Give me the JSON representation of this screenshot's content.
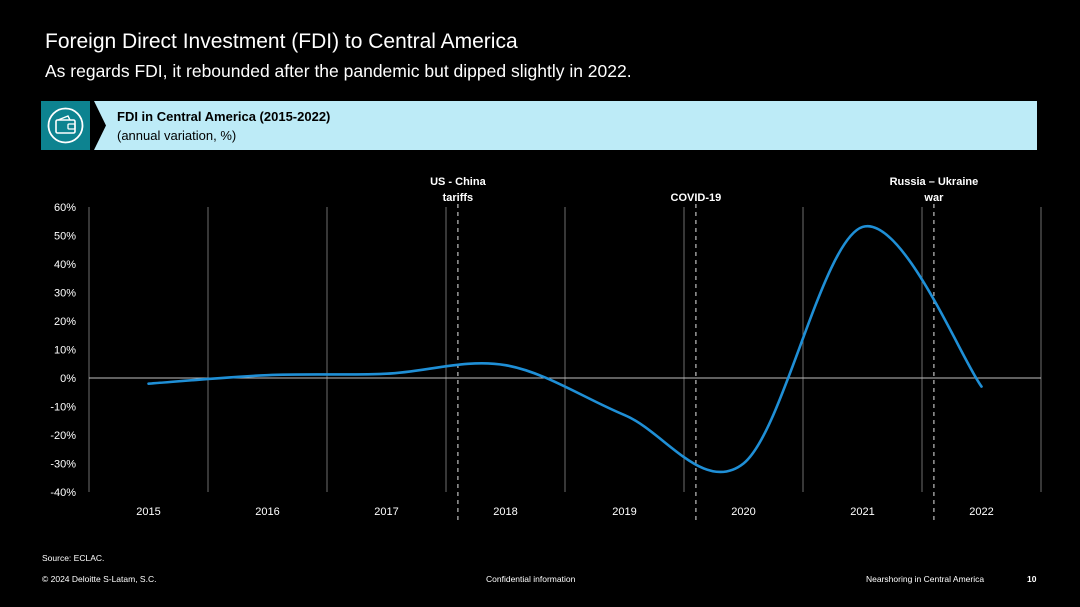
{
  "slide": {
    "title": "Foreign Direct Investment (FDI) to Central America",
    "subtitle": "As regards FDI, it rebounded after the pandemic but dipped slightly in 2022."
  },
  "banner": {
    "icon": "wallet-icon",
    "title": "FDI in Central America (2015-2022)",
    "subtitle": "(annual variation, %)",
    "colors": {
      "icon_bg": "#0d8390",
      "body_bg": "#bdebf7"
    }
  },
  "chart_data": {
    "type": "line",
    "title": "",
    "xlabel": "",
    "ylabel": "",
    "categories": [
      "2015",
      "2016",
      "2017",
      "2018",
      "2019",
      "2020",
      "2021",
      "2022"
    ],
    "ylim": [
      -40,
      60
    ],
    "yticks": [
      "60%",
      "50%",
      "40%",
      "30%",
      "20%",
      "10%",
      "0%",
      "-10%",
      "-20%",
      "-30%",
      "-40%"
    ],
    "grid": "vertical",
    "series": [
      {
        "values": [
          -2,
          1,
          1.5,
          4.5,
          -13,
          -30,
          53,
          -3
        ],
        "color": "#1f8fd6"
      }
    ],
    "events": [
      {
        "label_lines": [
          "US - China",
          "tariffs"
        ],
        "x": 2017.6
      },
      {
        "label_lines": [
          "COVID-19"
        ],
        "x": 2019.6
      },
      {
        "label_lines": [
          "Russia – Ukraine",
          "war"
        ],
        "x": 2021.6
      }
    ]
  },
  "footer": {
    "source": "Source: ECLAC.",
    "copyright": "© 2024 Deloitte S-Latam, S.C.",
    "confidential": "Confidential information",
    "report": "Nearshoring in Central America",
    "page": "10"
  }
}
